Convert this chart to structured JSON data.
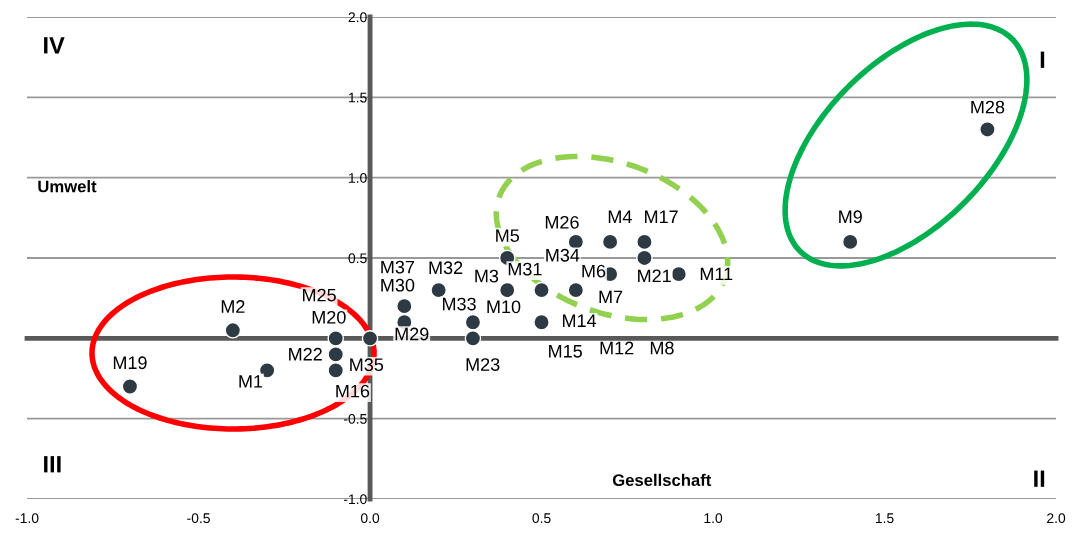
{
  "chart_data": {
    "type": "scatter",
    "xlabel": "Gesellschaft",
    "ylabel": "Umwelt",
    "x": [
      1.8,
      1.4,
      -0.7,
      -0.4,
      -0.3,
      -0.1,
      -0.1,
      -0.1,
      0.0,
      0.1,
      0.1,
      0.2,
      0.3,
      0.3,
      0.4,
      0.4,
      0.5,
      0.5,
      0.6,
      0.6,
      0.7,
      0.7,
      0.8,
      0.8,
      0.9
    ],
    "series": [
      {
        "color": "#2d3a44",
        "values": [
          1.3,
          0.6,
          -0.3,
          0.05,
          -0.2,
          0.0,
          -0.1,
          -0.2,
          0.0,
          0.2,
          0.1,
          0.3,
          0.1,
          0.0,
          0.5,
          0.3,
          0.3,
          0.1,
          0.6,
          0.3,
          0.6,
          0.4,
          0.6,
          0.5,
          0.4
        ]
      }
    ],
    "xlim": [
      -1.0,
      2.0
    ],
    "xticks": [
      {
        "value": -1.0,
        "label": "-1.0"
      },
      -0.5,
      {
        "value": 0.0,
        "label": "0.0"
      },
      0.5,
      {
        "value": 1.0,
        "label": "1.0"
      },
      1.5,
      {
        "value": 2.0,
        "label": "2.0"
      }
    ],
    "ylim": [
      -1.0,
      2.0
    ],
    "yticks": [
      {
        "value": -1.0,
        "label": "-1.0"
      },
      -0.5,
      {
        "value": 0.0,
        "label": null
      },
      0.5,
      {
        "value": 1.0,
        "label": "1.0"
      },
      1.5,
      {
        "value": 2.0,
        "label": "2.0"
      }
    ],
    "grid": "y",
    "marker": "circle",
    "annotations": [
      "IV",
      "I",
      "III",
      "II",
      {
        "text": "M28",
        "x": 1.8,
        "y": 1.3
      },
      {
        "text": "M9",
        "x": 1.4,
        "y": 0.6
      },
      {
        "text": "M19",
        "x": -0.7,
        "y": -0.3
      },
      {
        "text": "M2",
        "x": -0.4,
        "y": 0.05
      },
      {
        "text": "M1",
        "x": -0.3,
        "y": -0.2
      },
      {
        "text": "M25",
        "x": -0.1,
        "y": 0.0
      },
      {
        "text": "M20",
        "x": -0.1,
        "y": 0.0
      },
      {
        "text": "M22",
        "x": -0.1,
        "y": -0.1
      },
      {
        "text": "M35",
        "x": -0.1,
        "y": -0.2
      },
      {
        "text": "M16",
        "x": -0.1,
        "y": -0.2
      },
      {
        "text": "M29",
        "x": 0.0,
        "y": 0.0
      },
      {
        "text": "M37",
        "x": 0.1,
        "y": 0.2
      },
      {
        "text": "M32",
        "x": 0.2,
        "y": 0.3
      },
      {
        "text": "M30",
        "x": 0.1,
        "y": 0.2
      },
      {
        "text": "M3",
        "x": 0.4,
        "y": 0.3
      },
      {
        "text": "M31",
        "x": 0.5,
        "y": 0.3
      },
      {
        "text": "M34",
        "x": 0.5,
        "y": 0.3
      },
      {
        "text": "M5",
        "x": 0.4,
        "y": 0.5
      },
      {
        "text": "M26",
        "x": 0.6,
        "y": 0.6
      },
      {
        "text": "M4",
        "x": 0.7,
        "y": 0.6
      },
      {
        "text": "M17",
        "x": 0.8,
        "y": 0.6
      },
      {
        "text": "M6",
        "x": 0.7,
        "y": 0.4
      },
      {
        "text": "M21",
        "x": 0.8,
        "y": 0.5
      },
      {
        "text": "M11",
        "x": 0.9,
        "y": 0.4
      },
      {
        "text": "M7",
        "x": 0.6,
        "y": 0.3
      },
      {
        "text": "M33",
        "x": 0.3,
        "y": 0.1
      },
      {
        "text": "M10",
        "x": 0.3,
        "y": 0.1
      },
      {
        "text": "M14",
        "x": 0.5,
        "y": 0.1
      },
      {
        "text": "M15",
        "x": 0.5,
        "y": 0.1
      },
      "M12",
      "M8",
      {
        "text": "M23",
        "x": 0.3,
        "y": 0.0
      }
    ]
  }
}
